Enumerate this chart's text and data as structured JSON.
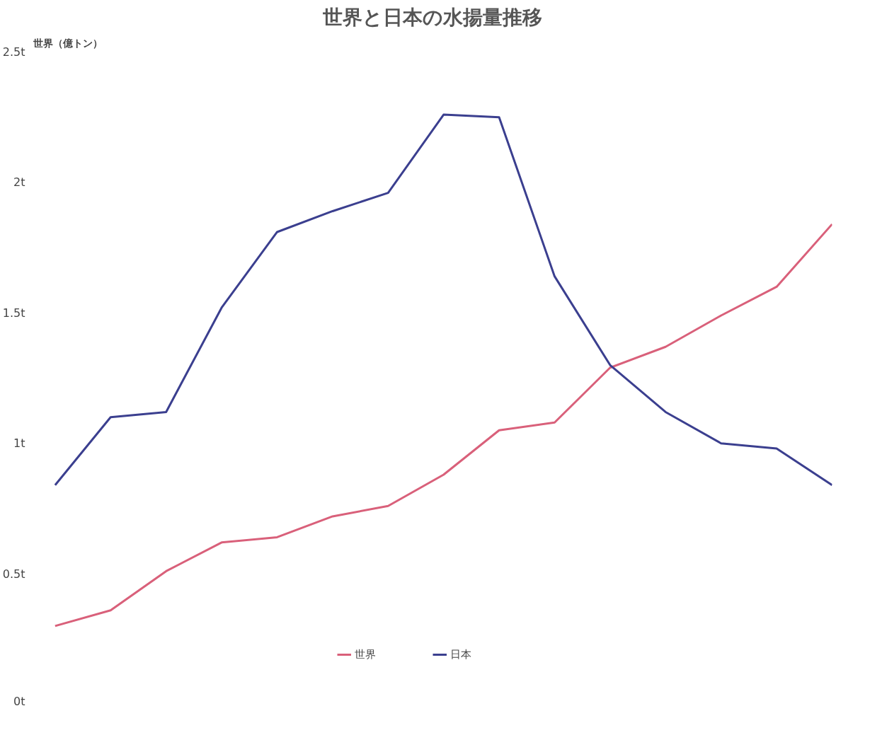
{
  "chart_data": {
    "type": "line",
    "title": "世界と日本の水揚量推移",
    "ylabel": "世界（億トン）",
    "categories": [
      null,
      null,
      null,
      null,
      null,
      null,
      null,
      null,
      null,
      null,
      null,
      null,
      null,
      null,
      null
    ],
    "series": [
      {
        "name": "世界",
        "color": "#d9607a",
        "values": [
          0.3,
          0.36,
          0.51,
          0.62,
          0.64,
          0.72,
          0.76,
          0.88,
          1.05,
          1.08,
          1.29,
          1.37,
          1.49,
          1.6,
          1.84
        ]
      },
      {
        "name": "日本",
        "color": "#3b3f8f",
        "values": [
          0.84,
          1.1,
          1.12,
          1.52,
          1.81,
          1.89,
          1.96,
          2.26,
          2.25,
          1.64,
          1.3,
          1.12,
          1.0,
          0.98,
          0.84
        ]
      }
    ],
    "ylim": [
      0,
      2.5
    ],
    "yticks": [
      {
        "value": 0,
        "label": "0t"
      },
      {
        "value": 0.5,
        "label": "0.5t"
      },
      {
        "value": 1,
        "label": "1t"
      },
      {
        "value": 1.5,
        "label": "1.5t"
      },
      {
        "value": 2,
        "label": "2t"
      },
      {
        "value": 2.5,
        "label": "2.5t"
      }
    ],
    "grid": false,
    "legend": "bottom",
    "tick_labels": "y",
    "marker": "none",
    "line_style": "solid"
  }
}
